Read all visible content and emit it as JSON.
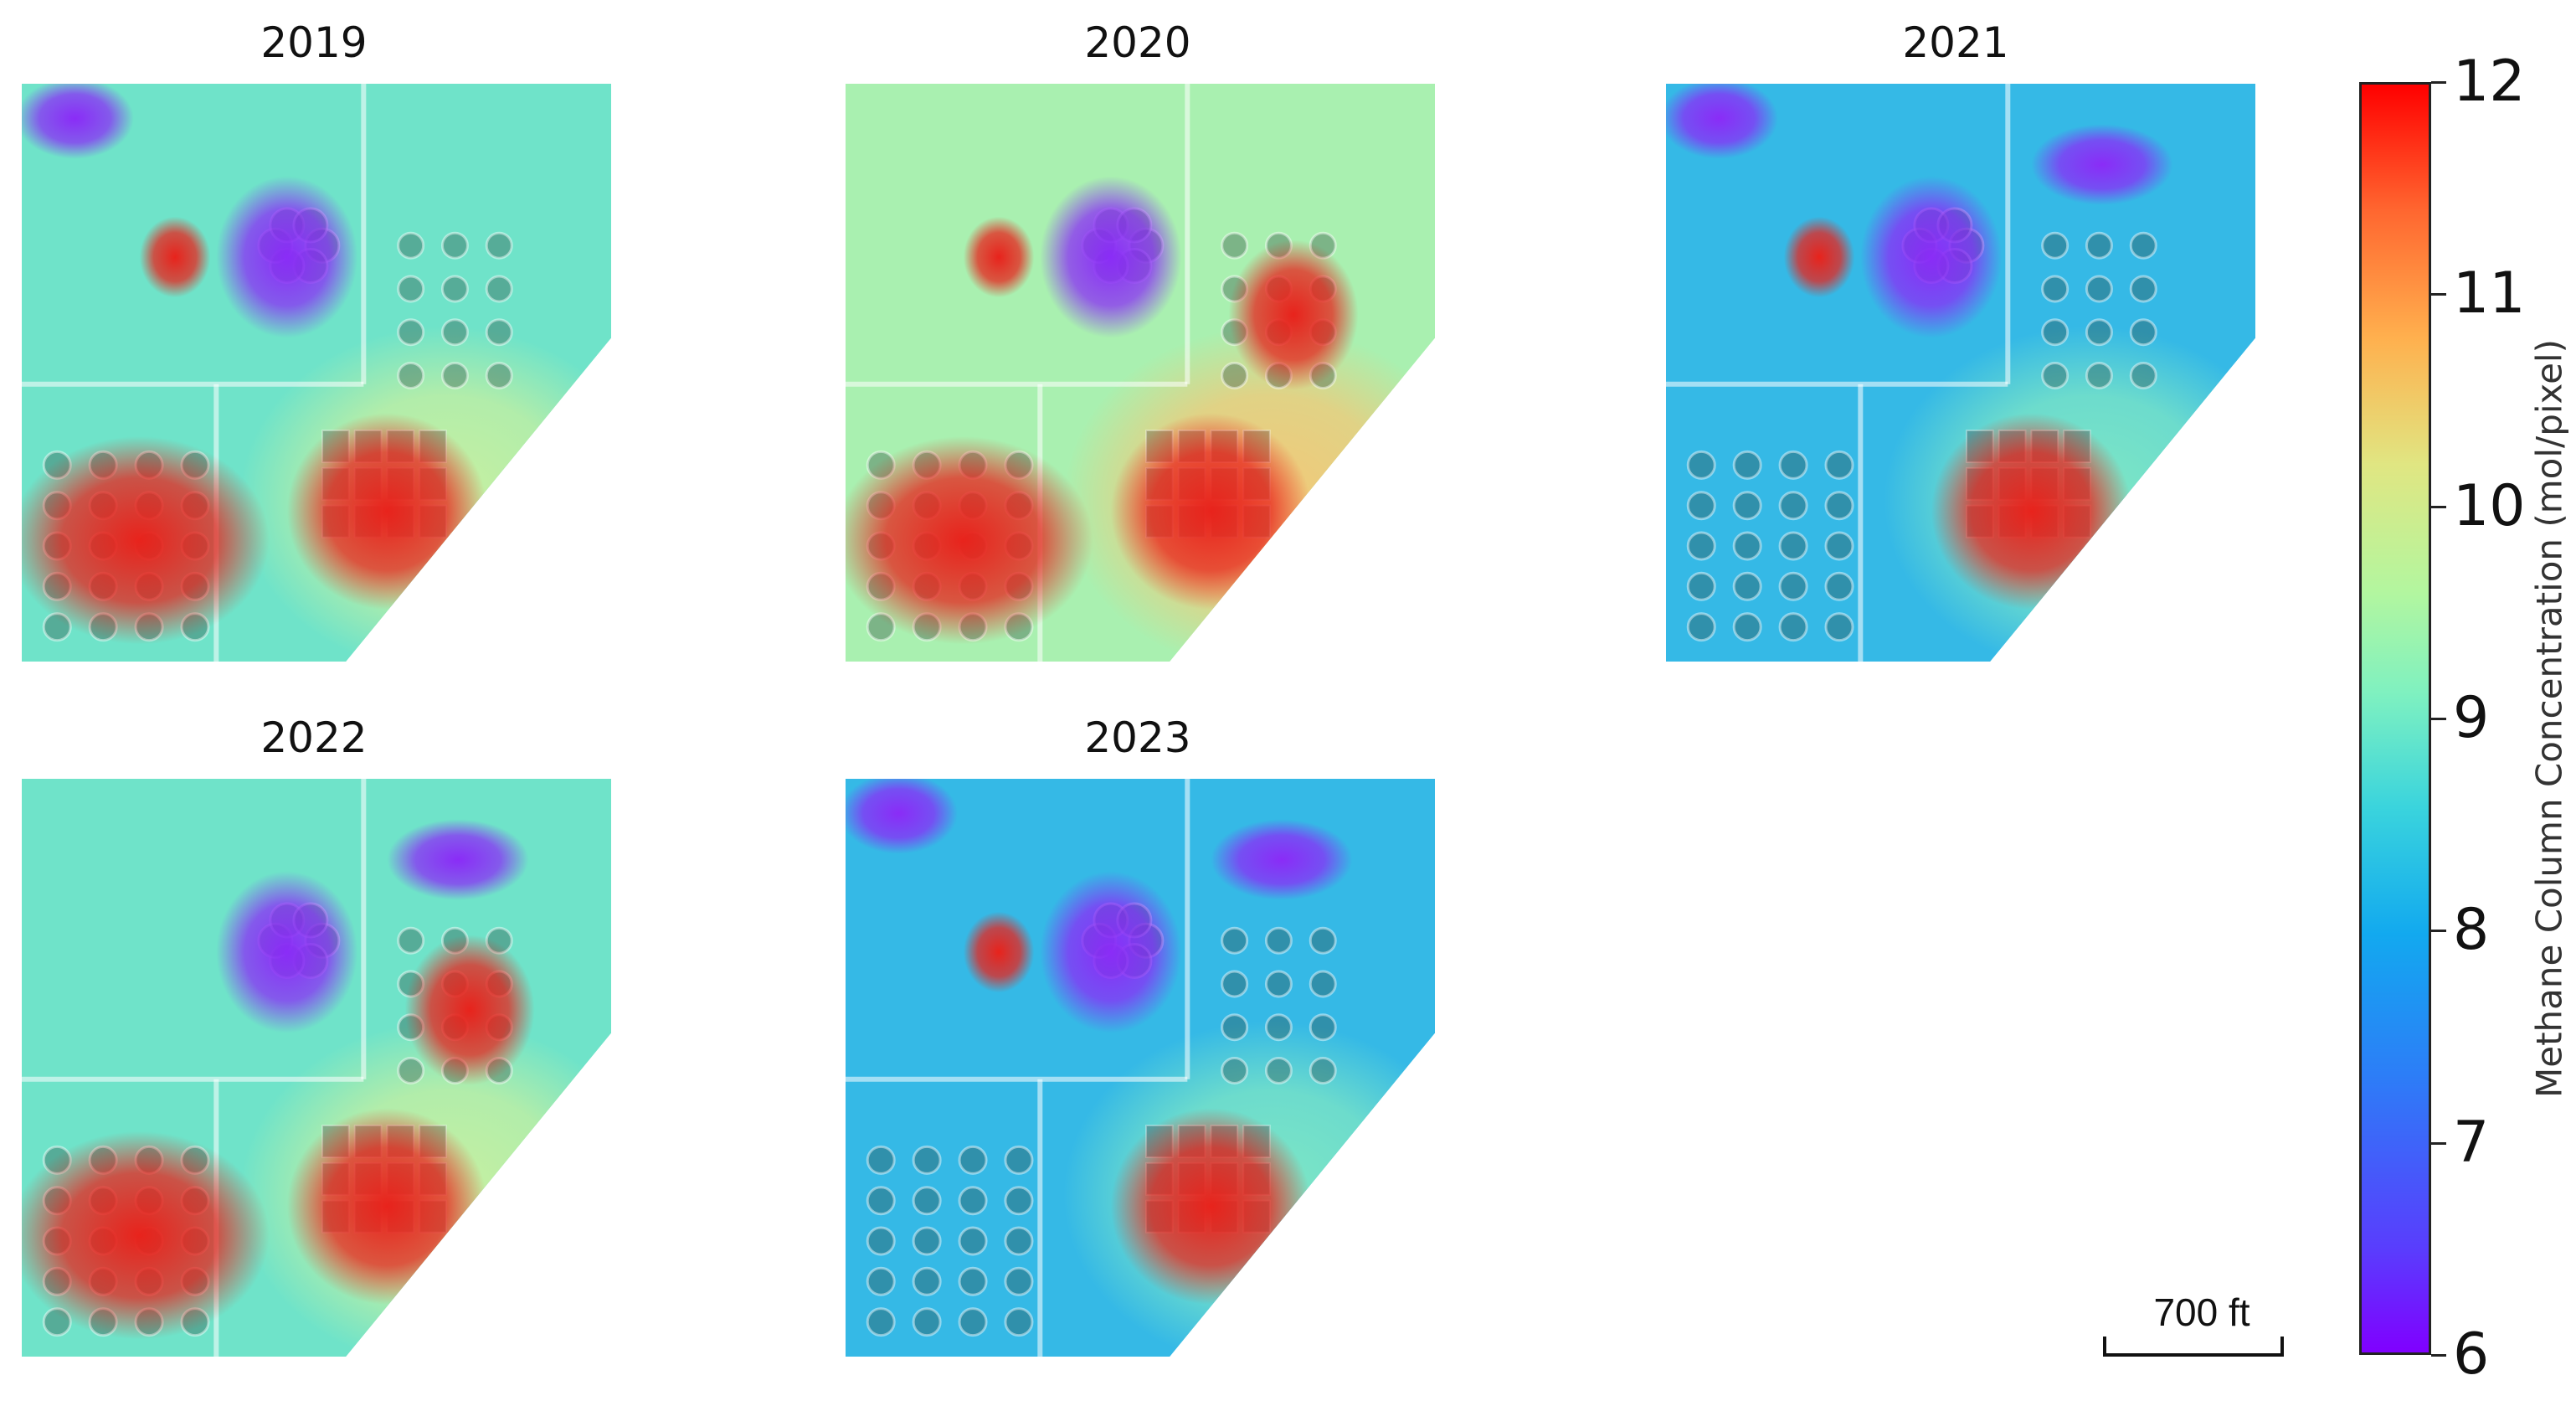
{
  "chart_data": {
    "type": "heatmap",
    "panels": [
      {
        "title": "2019",
        "overall_level": "medium",
        "hotspots": [
          "southwest clarifier bank",
          "southeast basins",
          "northwest small unit"
        ],
        "coolspots": [
          "central digesters",
          "northwest corner"
        ]
      },
      {
        "title": "2020",
        "overall_level": "high",
        "hotspots": [
          "southwest clarifier bank",
          "southeast basins",
          "northwest small unit",
          "east circular tanks"
        ],
        "coolspots": [
          "central digesters"
        ]
      },
      {
        "title": "2021",
        "overall_level": "low",
        "hotspots": [
          "southeast basins",
          "northwest small unit"
        ],
        "coolspots": [
          "central digesters",
          "northwest corner",
          "northeast block"
        ]
      },
      {
        "title": "2022",
        "overall_level": "medium",
        "hotspots": [
          "southeast basins",
          "southwest clarifier bank",
          "east circular tanks"
        ],
        "coolspots": [
          "central digesters",
          "northeast block"
        ]
      },
      {
        "title": "2023",
        "overall_level": "low",
        "hotspots": [
          "southeast basins",
          "northwest small unit"
        ],
        "coolspots": [
          "central digesters",
          "northwest corner",
          "northeast block"
        ]
      }
    ],
    "colorbar": {
      "label": "Methane Column Concentration (mol/pixel)",
      "min": 6,
      "max": 12,
      "ticks": [
        "12",
        "11",
        "10",
        "9",
        "8",
        "7",
        "6"
      ],
      "colormap": "rainbow"
    },
    "scale_bar": {
      "label": "700 ft"
    }
  }
}
